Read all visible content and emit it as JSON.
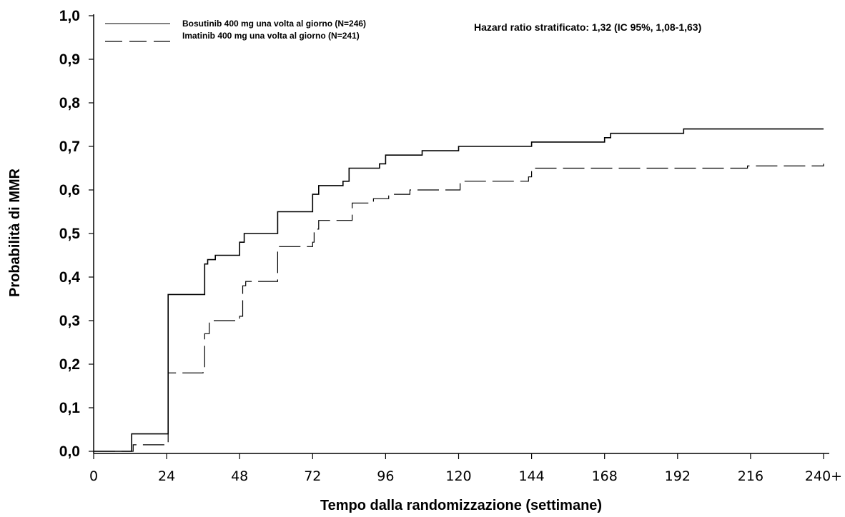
{
  "chart_data": {
    "type": "line",
    "subtype": "step",
    "title": "",
    "xlabel": "Tempo dalla randomizzazione (settimane)",
    "ylabel": "Probabilità di MMR",
    "annotation": "Hazard ratio stratificato: 1,32 (IC 95%, 1,08-1,63)",
    "xlim": [
      0,
      240
    ],
    "ylim": [
      0,
      1
    ],
    "x_ticks": [
      {
        "value": 0,
        "label": "0"
      },
      {
        "value": 24,
        "label": "24"
      },
      {
        "value": 48,
        "label": "48"
      },
      {
        "value": 72,
        "label": "72"
      },
      {
        "value": 96,
        "label": "96"
      },
      {
        "value": 120,
        "label": "120"
      },
      {
        "value": 144,
        "label": "144"
      },
      {
        "value": 168,
        "label": "168"
      },
      {
        "value": 192,
        "label": "192"
      },
      {
        "value": 216,
        "label": "216"
      },
      {
        "value": 240,
        "label": "240+"
      }
    ],
    "y_ticks": [
      {
        "value": 0.0,
        "label": "0,0"
      },
      {
        "value": 0.1,
        "label": "0,1"
      },
      {
        "value": 0.2,
        "label": "0,2"
      },
      {
        "value": 0.3,
        "label": "0,3"
      },
      {
        "value": 0.4,
        "label": "0,4"
      },
      {
        "value": 0.5,
        "label": "0,5"
      },
      {
        "value": 0.6,
        "label": "0,6"
      },
      {
        "value": 0.7,
        "label": "0,7"
      },
      {
        "value": 0.8,
        "label": "0,8"
      },
      {
        "value": 0.9,
        "label": "0,9"
      },
      {
        "value": 1.0,
        "label": "1,0"
      }
    ],
    "grid": false,
    "legend_position": "top-left",
    "series": [
      {
        "name": "Bosutinib 400 mg una volta al giorno (N=246)",
        "style": "solid",
        "color": "#000000",
        "points": [
          [
            0,
            0.0
          ],
          [
            12.5,
            0.0
          ],
          [
            12.5,
            0.04
          ],
          [
            24.5,
            0.04
          ],
          [
            24.5,
            0.36
          ],
          [
            36,
            0.36
          ],
          [
            36.5,
            0.43
          ],
          [
            37.5,
            0.44
          ],
          [
            40,
            0.45
          ],
          [
            46,
            0.45
          ],
          [
            48,
            0.48
          ],
          [
            49.5,
            0.5
          ],
          [
            60,
            0.5
          ],
          [
            60.5,
            0.55
          ],
          [
            70,
            0.55
          ],
          [
            72,
            0.59
          ],
          [
            74,
            0.61
          ],
          [
            82,
            0.62
          ],
          [
            84,
            0.65
          ],
          [
            94,
            0.66
          ],
          [
            96,
            0.68
          ],
          [
            108,
            0.69
          ],
          [
            120,
            0.7
          ],
          [
            144,
            0.71
          ],
          [
            168,
            0.72
          ],
          [
            170,
            0.73
          ],
          [
            192,
            0.73
          ],
          [
            194,
            0.74
          ],
          [
            240,
            0.74
          ]
        ]
      },
      {
        "name": "Imatinib 400 mg una volta al giorno (N=241)",
        "style": "dashed",
        "color": "#000000",
        "points": [
          [
            0,
            0.0
          ],
          [
            13,
            0.0
          ],
          [
            13,
            0.015
          ],
          [
            24.5,
            0.015
          ],
          [
            24.5,
            0.18
          ],
          [
            36,
            0.19
          ],
          [
            36.5,
            0.27
          ],
          [
            38,
            0.3
          ],
          [
            48,
            0.31
          ],
          [
            49,
            0.38
          ],
          [
            50,
            0.39
          ],
          [
            60,
            0.39
          ],
          [
            60.5,
            0.47
          ],
          [
            72,
            0.48
          ],
          [
            72.5,
            0.51
          ],
          [
            74,
            0.53
          ],
          [
            84,
            0.53
          ],
          [
            85,
            0.57
          ],
          [
            92,
            0.58
          ],
          [
            97,
            0.59
          ],
          [
            104,
            0.6
          ],
          [
            120,
            0.6
          ],
          [
            120.5,
            0.62
          ],
          [
            132,
            0.62
          ],
          [
            143,
            0.63
          ],
          [
            144,
            0.65
          ],
          [
            192,
            0.65
          ],
          [
            194,
            0.65
          ],
          [
            215,
            0.655
          ],
          [
            240,
            0.66
          ]
        ]
      }
    ]
  }
}
